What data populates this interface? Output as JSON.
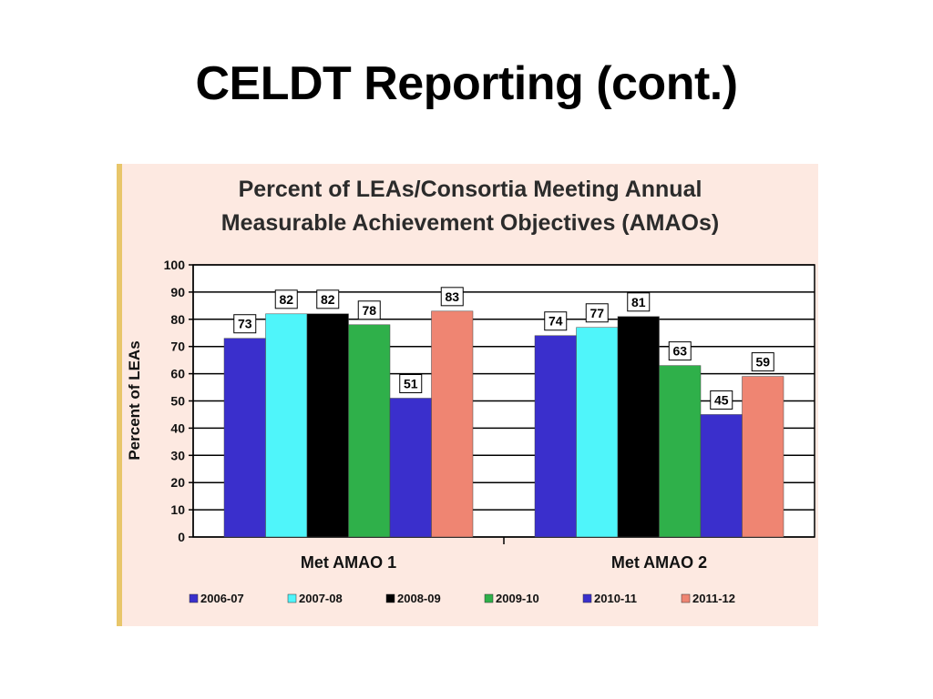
{
  "slide": {
    "title": "CELDT Reporting (cont.)"
  },
  "chart_data": {
    "type": "bar",
    "title": "Percent of LEAs/Consortia Meeting Annual",
    "subtitle": "Measurable Achievement Objectives (AMAOs)",
    "xlabel": "",
    "ylabel": "Percent of LEAs",
    "ylim": [
      0,
      100
    ],
    "yticks": [
      0,
      10,
      20,
      30,
      40,
      50,
      60,
      70,
      80,
      90,
      100
    ],
    "grid": true,
    "legend_position": "bottom",
    "categories": [
      "Met AMAO 1",
      "Met AMAO 2"
    ],
    "series": [
      {
        "name": "2006-07",
        "color": "#3a2fcc",
        "values": [
          73,
          74
        ]
      },
      {
        "name": "2007-08",
        "color": "#4ff5fa",
        "values": [
          82,
          77
        ]
      },
      {
        "name": "2008-09",
        "color": "#000000",
        "values": [
          82,
          81
        ]
      },
      {
        "name": "2009-10",
        "color": "#2fb04a",
        "values": [
          78,
          63
        ]
      },
      {
        "name": "2010-11",
        "color": "#3a2fcc",
        "values": [
          51,
          45
        ]
      },
      {
        "name": "2011-12",
        "color": "#ef8572",
        "values": [
          83,
          59
        ]
      }
    ]
  }
}
